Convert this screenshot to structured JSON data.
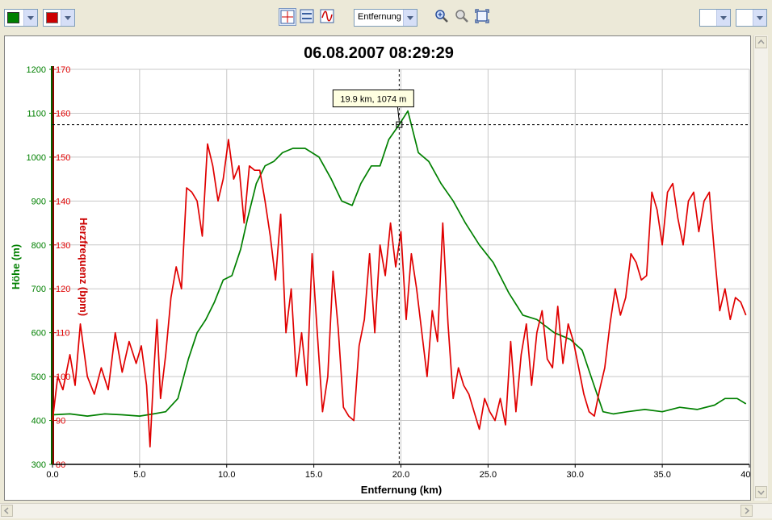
{
  "toolbar": {
    "view_select": "Entfernung",
    "left_color": "#008000",
    "right_color": "#cc0000"
  },
  "chart_data": {
    "type": "line",
    "title": "06.08.2007 08:29:29",
    "xlabel": "Entfernung (km)",
    "ylabel_left": "Höhe (m)",
    "ylabel_right": "Herzfrequenz (bpm)",
    "xlim": [
      0,
      40
    ],
    "x_ticks": [
      "0.0",
      "5.0",
      "10.0",
      "15.0",
      "20.0",
      "25.0",
      "30.0",
      "35.0",
      "40.0"
    ],
    "ylim_left": [
      300,
      1200
    ],
    "ylim_right": [
      80,
      170
    ],
    "y_ticks_left": [
      "300",
      "400",
      "500",
      "600",
      "700",
      "800",
      "900",
      "1000",
      "1100",
      "1200"
    ],
    "y_ticks_right": [
      "80",
      "90",
      "100",
      "110",
      "120",
      "130",
      "140",
      "150",
      "160",
      "170"
    ],
    "grid": true,
    "tooltip": "19.9 km, 1074 m",
    "crosshair": {
      "x": 19.9,
      "y": 1074
    },
    "series": [
      {
        "name": "Höhe (m)",
        "color": "#008000",
        "axis": "left",
        "x": [
          0,
          1,
          2,
          3,
          4,
          5,
          5.8,
          6.5,
          7.2,
          7.8,
          8.3,
          8.8,
          9.3,
          9.8,
          10.3,
          10.8,
          11.2,
          11.7,
          12.2,
          12.7,
          13.2,
          13.8,
          14.5,
          15.3,
          16,
          16.6,
          17.2,
          17.7,
          18.3,
          18.8,
          19.3,
          19.9,
          20.4,
          21,
          21.6,
          22.3,
          23,
          23.7,
          24.5,
          25.3,
          26.2,
          27,
          27.8,
          28.8,
          29.7,
          30.4,
          31,
          31.6,
          32.2,
          33,
          34,
          35,
          36,
          37,
          38,
          38.6,
          39.3,
          39.8
        ],
        "y": [
          413,
          415,
          410,
          415,
          413,
          410,
          415,
          420,
          450,
          540,
          600,
          630,
          670,
          720,
          730,
          790,
          860,
          940,
          980,
          990,
          1010,
          1020,
          1020,
          1000,
          950,
          900,
          890,
          940,
          980,
          980,
          1040,
          1074,
          1105,
          1010,
          990,
          940,
          900,
          850,
          800,
          760,
          690,
          640,
          630,
          600,
          585,
          560,
          490,
          420,
          415,
          420,
          425,
          420,
          430,
          425,
          435,
          450,
          450,
          438
        ]
      },
      {
        "name": "Herzfrequenz (bpm)",
        "color": "#e00000",
        "axis": "right",
        "x": [
          0,
          0.3,
          0.6,
          1,
          1.3,
          1.6,
          2,
          2.4,
          2.8,
          3.2,
          3.6,
          4,
          4.4,
          4.8,
          5.1,
          5.4,
          5.6,
          5.8,
          6,
          6.2,
          6.5,
          6.8,
          7.1,
          7.4,
          7.7,
          8,
          8.3,
          8.6,
          8.9,
          9.2,
          9.5,
          9.8,
          10.1,
          10.4,
          10.7,
          11,
          11.3,
          11.6,
          11.9,
          12.2,
          12.5,
          12.8,
          13.1,
          13.4,
          13.7,
          14,
          14.3,
          14.6,
          14.9,
          15.2,
          15.5,
          15.8,
          16.1,
          16.4,
          16.7,
          17,
          17.3,
          17.6,
          17.9,
          18.2,
          18.5,
          18.8,
          19.1,
          19.4,
          19.7,
          20,
          20.3,
          20.6,
          20.9,
          21.2,
          21.5,
          21.8,
          22.1,
          22.4,
          22.7,
          23,
          23.3,
          23.6,
          23.9,
          24.2,
          24.5,
          24.8,
          25.1,
          25.4,
          25.7,
          26,
          26.3,
          26.6,
          26.9,
          27.2,
          27.5,
          27.8,
          28.1,
          28.4,
          28.7,
          29,
          29.3,
          29.6,
          29.9,
          30.2,
          30.5,
          30.8,
          31.1,
          31.4,
          31.7,
          32,
          32.3,
          32.6,
          32.9,
          33.2,
          33.5,
          33.8,
          34.1,
          34.4,
          34.7,
          35,
          35.3,
          35.6,
          35.9,
          36.2,
          36.5,
          36.8,
          37.1,
          37.4,
          37.7,
          38,
          38.3,
          38.6,
          38.9,
          39.2,
          39.5,
          39.8
        ],
        "y": [
          90,
          100,
          97,
          105,
          98,
          112,
          100,
          96,
          102,
          97,
          110,
          101,
          108,
          103,
          107,
          98,
          84,
          100,
          113,
          95,
          105,
          118,
          125,
          120,
          143,
          142,
          140,
          132,
          153,
          148,
          140,
          145,
          154,
          145,
          148,
          135,
          148,
          147,
          147,
          140,
          132,
          122,
          137,
          110,
          120,
          100,
          110,
          98,
          128,
          110,
          92,
          100,
          124,
          111,
          93,
          91,
          90,
          107,
          113,
          128,
          110,
          130,
          123,
          135,
          125,
          133,
          113,
          128,
          120,
          110,
          100,
          115,
          108,
          135,
          112,
          95,
          102,
          98,
          96,
          92,
          88,
          95,
          92,
          90,
          95,
          89,
          108,
          92,
          105,
          112,
          98,
          110,
          115,
          104,
          102,
          116,
          103,
          112,
          108,
          102,
          96,
          92,
          91,
          97,
          102,
          112,
          120,
          114,
          118,
          128,
          126,
          122,
          123,
          142,
          138,
          130,
          142,
          144,
          136,
          130,
          140,
          142,
          133,
          140,
          142,
          128,
          115,
          120,
          113,
          118,
          117,
          114
        ]
      }
    ]
  }
}
